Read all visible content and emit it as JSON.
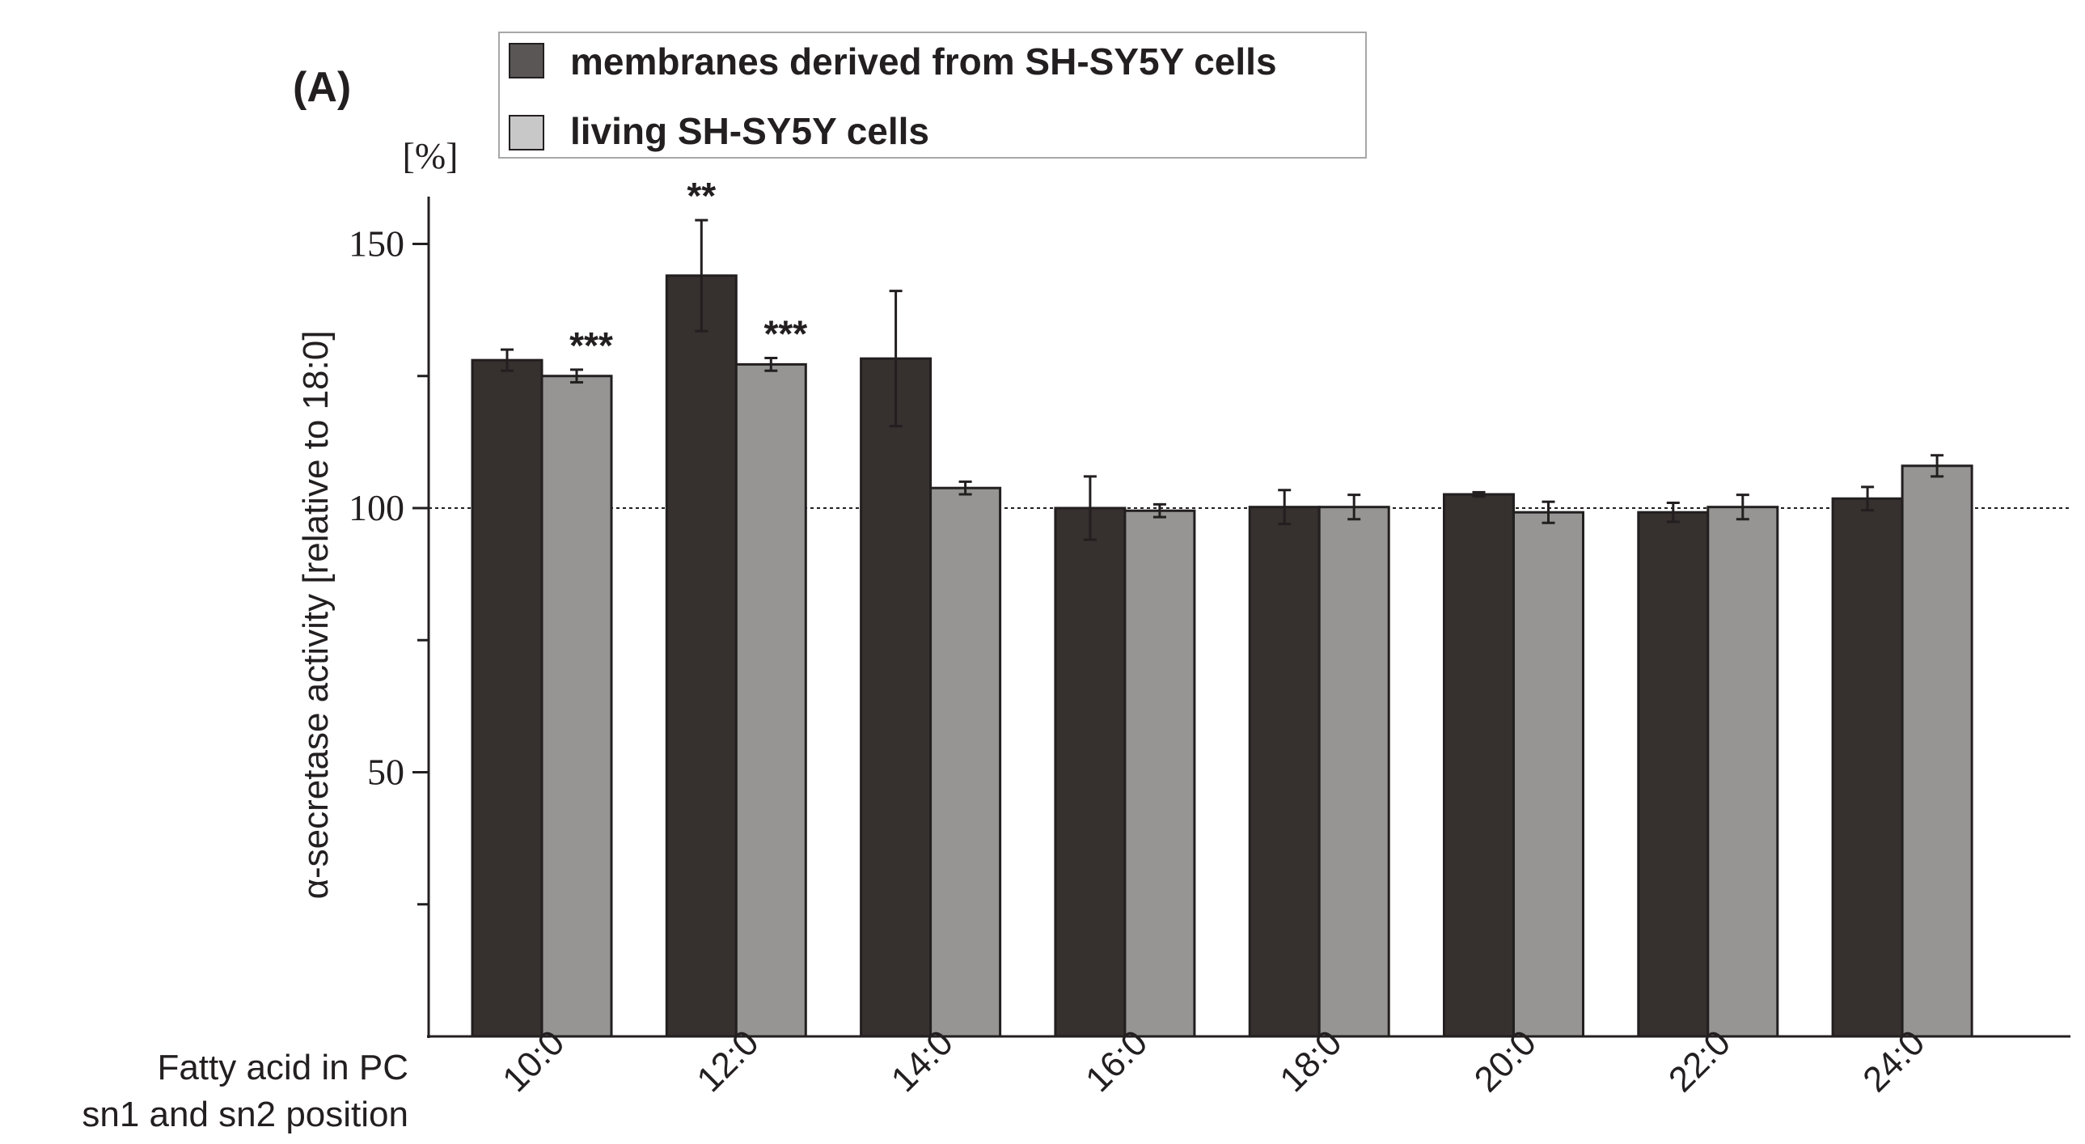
{
  "chart_data": {
    "type": "bar",
    "panel_label": "(A)",
    "unit_label": "[%]",
    "ylabel": "α-secretase activity [relative to 18:0]",
    "xlabel": "Fatty acid in PC sn1 and sn2 position",
    "xlabel_lines": [
      "Fatty acid in PC",
      "sn1 and sn2 position"
    ],
    "categories": [
      "10:0",
      "12:0",
      "14:0",
      "16:0",
      "18:0",
      "20:0",
      "22:0",
      "24:0"
    ],
    "ylim": [
      0,
      160
    ],
    "yticks": [
      0,
      25,
      50,
      75,
      100,
      125,
      150
    ],
    "ytick_labels": [
      "150",
      "100",
      "50"
    ],
    "reference_line": 100,
    "legend_position": "top-center",
    "series": [
      {
        "name": "membranes derived from SH-SY5Y cells",
        "color": "#36302e",
        "values": [
          128,
          144,
          128.3,
          100,
          100.2,
          102.6,
          99.2,
          101.8
        ],
        "errors": [
          2,
          10.5,
          12.8,
          6,
          3.2,
          0.4,
          1.8,
          2.2
        ],
        "significance": [
          "",
          "**",
          "",
          "",
          "",
          "",
          "",
          ""
        ]
      },
      {
        "name": "living SH-SY5Y cells",
        "color": "#969594",
        "values": [
          125,
          127.2,
          103.8,
          99.5,
          100.2,
          99.2,
          100.2,
          108
        ],
        "errors": [
          1.2,
          1.2,
          1.2,
          1.2,
          2.3,
          2,
          2.3,
          2
        ],
        "significance": [
          "***",
          "***",
          "",
          "",
          "",
          "",
          "",
          ""
        ]
      }
    ]
  }
}
